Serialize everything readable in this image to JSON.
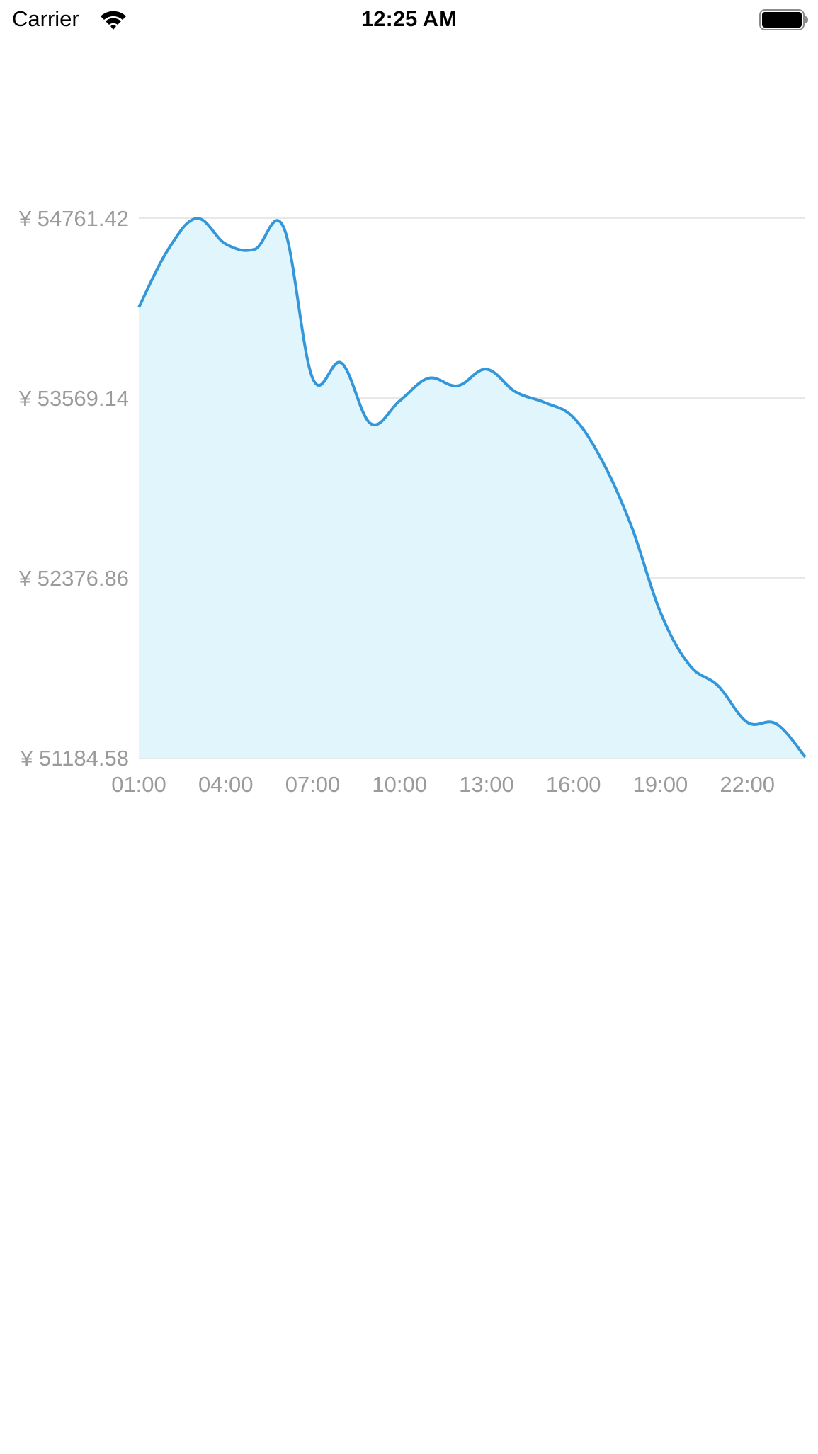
{
  "status_bar": {
    "carrier": "Carrier",
    "time": "12:25 AM"
  },
  "colors": {
    "line": "#3497d9",
    "fill": "#e1f5fd",
    "grid": "#e8e8e8",
    "tick": "#9b9b9b"
  },
  "icons": {
    "wifi": "wifi-icon",
    "battery": "battery-icon"
  },
  "chart_data": {
    "type": "area",
    "title": "",
    "xlabel": "",
    "ylabel": "",
    "x_ticks": [
      "01:00",
      "04:00",
      "07:00",
      "10:00",
      "13:00",
      "16:00",
      "19:00",
      "22:00"
    ],
    "y_ticks": [
      "¥ 51184.58",
      "¥ 52376.86",
      "¥ 53569.14",
      "¥ 54761.42"
    ],
    "y_tick_values": [
      51184.58,
      52376.86,
      53569.14,
      54761.42
    ],
    "ylim": [
      51184.58,
      54761.42
    ],
    "xlim": [
      1,
      24
    ],
    "grid": true,
    "legend": "none",
    "series": [
      {
        "x": [
          1,
          2,
          3,
          4,
          5,
          6,
          7,
          8,
          9,
          10,
          11,
          12,
          13,
          14,
          15,
          16,
          17,
          18,
          19,
          20,
          21,
          22,
          23,
          24
        ],
        "values": [
          54170,
          54550,
          54760,
          54590,
          54555,
          54700,
          53700,
          53800,
          53400,
          53550,
          53700,
          53650,
          53760,
          53610,
          53540,
          53440,
          53150,
          52720,
          52150,
          51800,
          51660,
          51420,
          51410,
          51190
        ]
      }
    ]
  }
}
